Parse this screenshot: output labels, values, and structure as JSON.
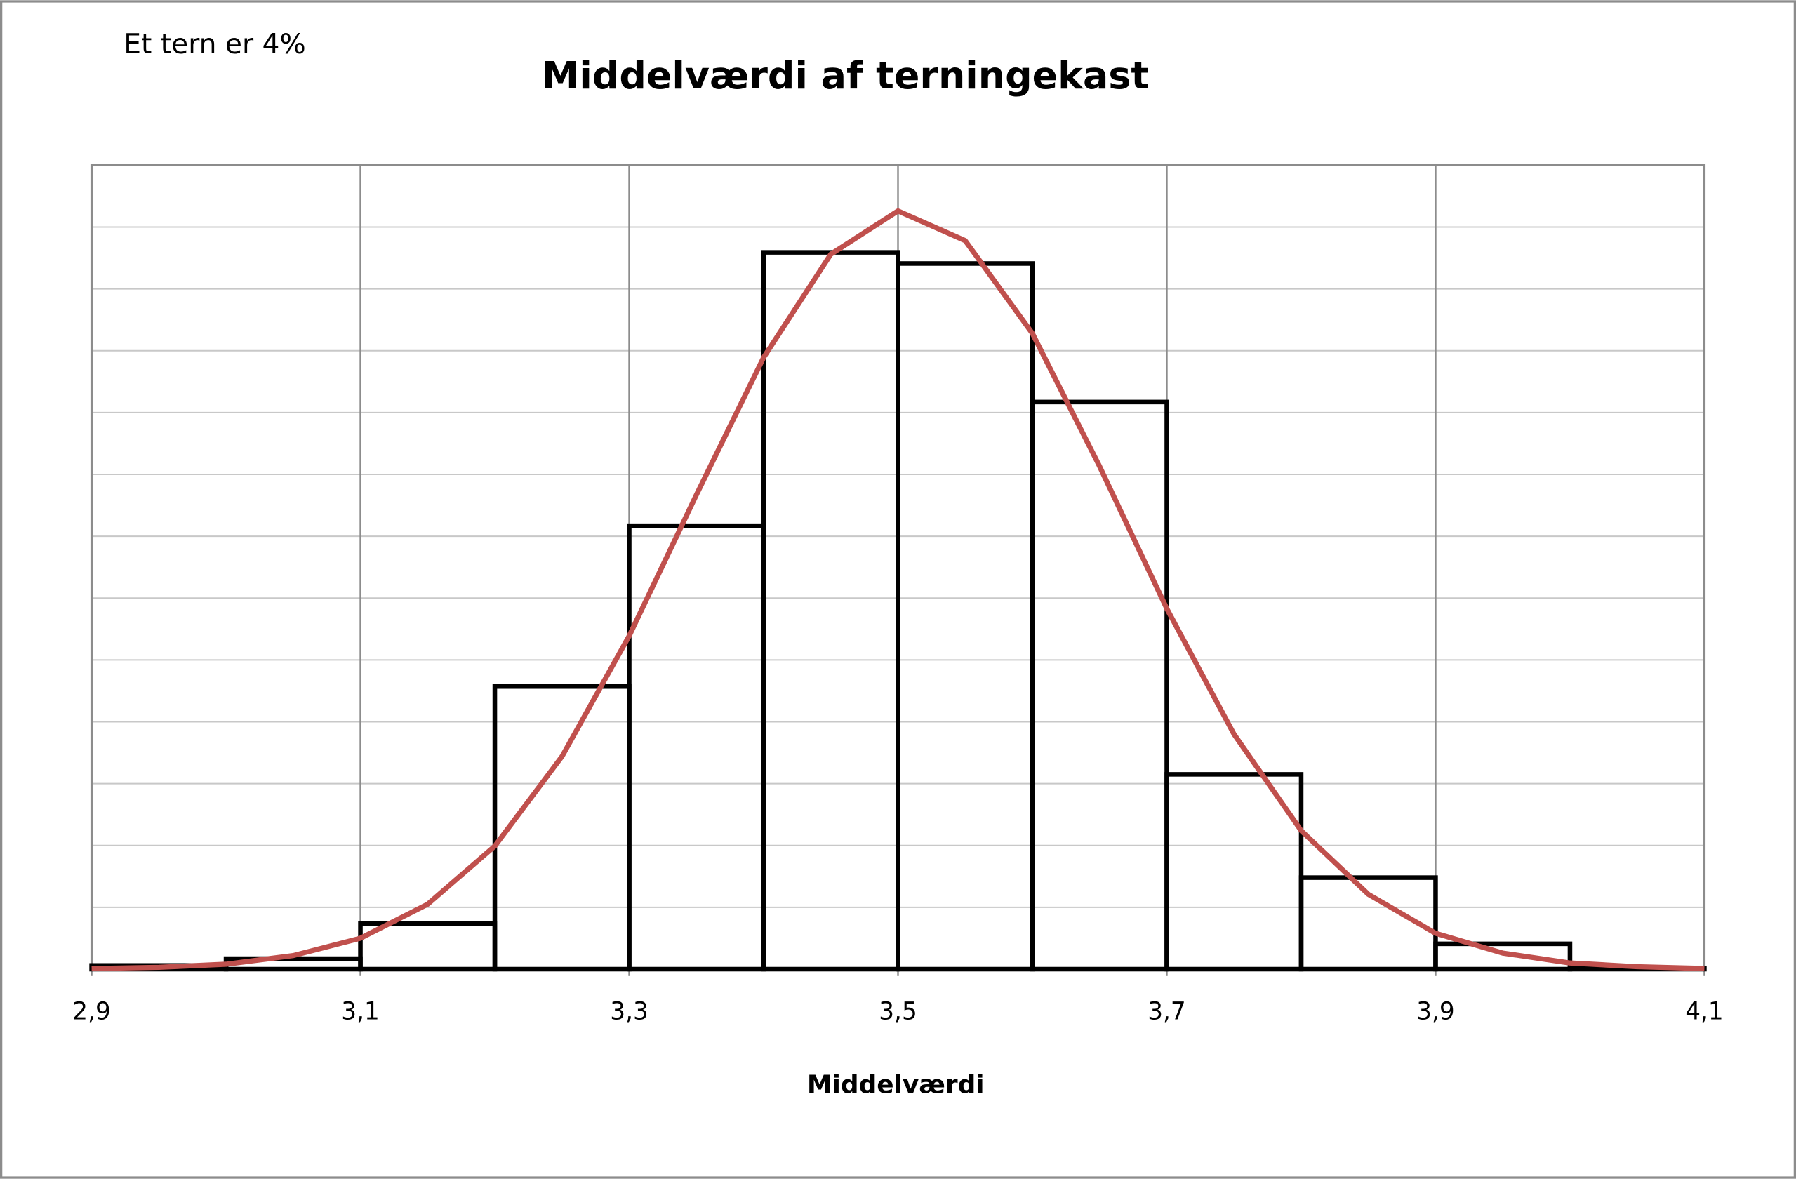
{
  "chart_data": {
    "type": "histogram",
    "title": "Middelværdi af terningekast",
    "annotation": "Et tern er 4%",
    "xlabel": "Middelværdi",
    "bins": [
      2.9,
      3.0,
      3.1,
      3.2,
      3.3,
      3.4,
      3.5,
      3.6,
      3.7,
      3.8,
      3.9,
      4.0,
      4.1
    ],
    "counts": [
      0.06,
      0.17,
      0.74,
      4.57,
      7.17,
      11.59,
      11.41,
      9.17,
      3.15,
      1.48,
      0.41,
      0.02
    ],
    "color": "#000000",
    "curve": {
      "type": "line",
      "color": "#c0504d",
      "x": [
        2.9,
        2.95,
        3.0,
        3.05,
        3.1,
        3.15,
        3.2,
        3.25,
        3.3,
        3.35,
        3.4,
        3.45,
        3.5,
        3.55,
        3.6,
        3.65,
        3.7,
        3.75,
        3.8,
        3.85,
        3.9,
        3.95,
        4.0,
        4.05,
        4.1
      ],
      "values": [
        0.01,
        0.03,
        0.08,
        0.22,
        0.5,
        1.05,
        1.99,
        3.44,
        5.39,
        7.67,
        9.89,
        11.56,
        12.26,
        11.78,
        10.28,
        8.13,
        5.83,
        3.8,
        2.24,
        1.21,
        0.58,
        0.26,
        0.1,
        0.04,
        0.01
      ]
    },
    "xlim": [
      2.9,
      4.1
    ],
    "xticks": [
      {
        "value": 2.9,
        "label": "2,9"
      },
      {
        "value": 3.1,
        "label": "3,1"
      },
      {
        "value": 3.3,
        "label": "3,3"
      },
      {
        "value": 3.5,
        "label": "3,5"
      },
      {
        "value": 3.7,
        "label": "3,7"
      },
      {
        "value": 3.9,
        "label": "3,9"
      },
      {
        "value": 4.1,
        "label": "4,1"
      }
    ],
    "ylim": [
      0,
      13
    ],
    "yticks": [
      0,
      1,
      2,
      3,
      4,
      5,
      6,
      7,
      8,
      9,
      10,
      11,
      12,
      13
    ],
    "grid": true
  }
}
